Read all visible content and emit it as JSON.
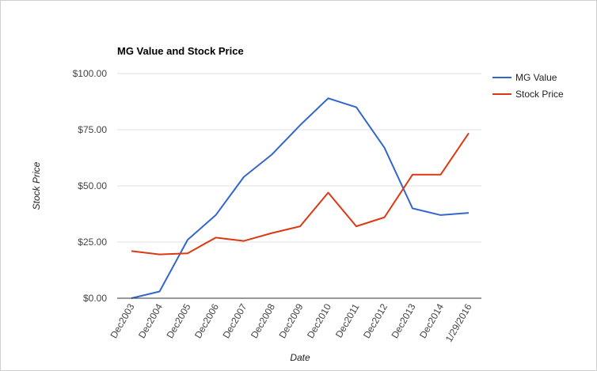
{
  "chart_data": {
    "type": "line",
    "title": "MG Value and Stock Price",
    "xlabel": "Date",
    "ylabel": "Stock Price",
    "categories": [
      "Dec2003",
      "Dec2004",
      "Dec2005",
      "Dec2006",
      "Dec2007",
      "Dec2008",
      "Dec2009",
      "Dec2010",
      "Dec2011",
      "Dec2012",
      "Dec2013",
      "Dec2014",
      "1/29/2016"
    ],
    "y_ticks": [
      "$0.00",
      "$25.00",
      "$50.00",
      "$75.00",
      "$100.00"
    ],
    "ylim": [
      0,
      100
    ],
    "grid": true,
    "legend_position": "right",
    "series": [
      {
        "name": "MG Value",
        "color": "#3366cc",
        "values": [
          0,
          3,
          26,
          37,
          54,
          64,
          77,
          89,
          85,
          67,
          40,
          37,
          38
        ]
      },
      {
        "name": "Stock Price",
        "color": "#dc3912",
        "values": [
          21,
          19.5,
          20,
          27,
          25.5,
          29,
          32,
          47,
          32,
          36,
          55,
          55,
          73.5
        ]
      }
    ]
  }
}
